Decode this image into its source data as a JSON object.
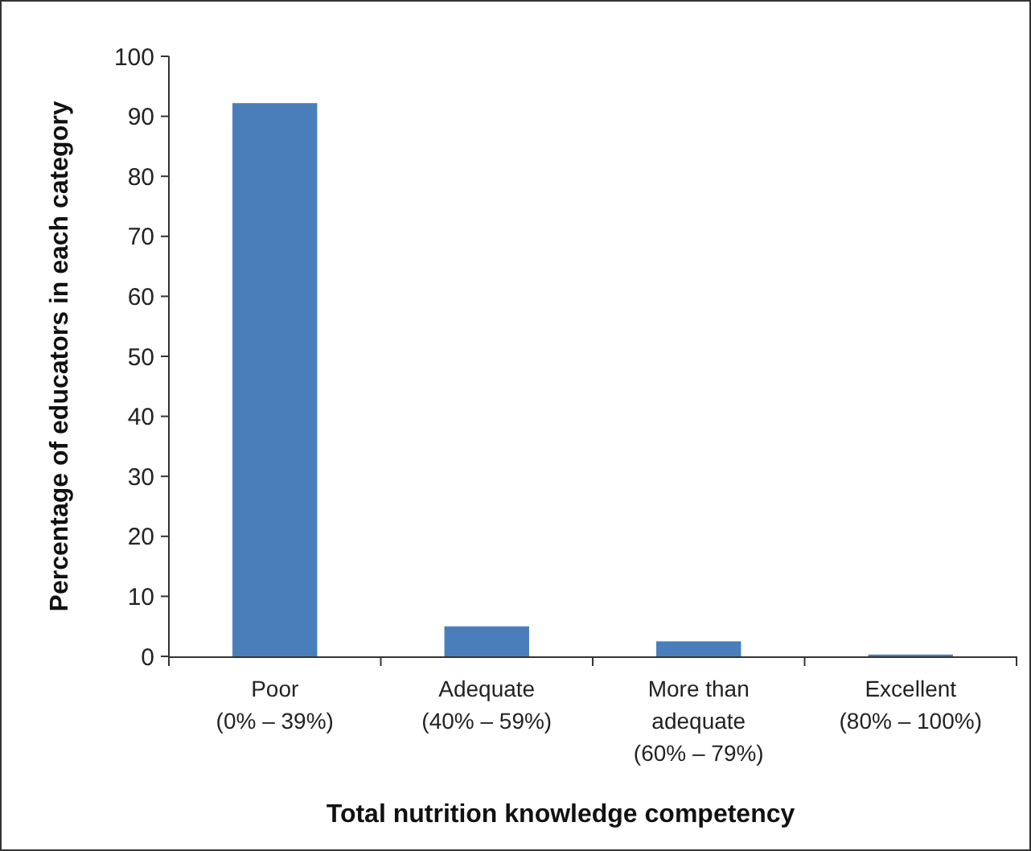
{
  "chart_data": {
    "type": "bar",
    "xlabel": "Total nutrition knowledge competency",
    "ylabel": "Percentage of educators in each category",
    "categories": [
      "Poor\n(0% – 39%)",
      "Adequate\n(40% – 59%)",
      "More than\nadequate\n(60% – 79%)",
      "Excellent\n(80% – 100%)"
    ],
    "values": [
      92.2,
      5.0,
      2.5,
      0.3
    ],
    "color": "#4a7ebb",
    "ylim": [
      0,
      100
    ],
    "yticks": [
      0,
      10,
      20,
      30,
      40,
      50,
      60,
      70,
      80,
      90,
      100
    ],
    "grid": false
  }
}
